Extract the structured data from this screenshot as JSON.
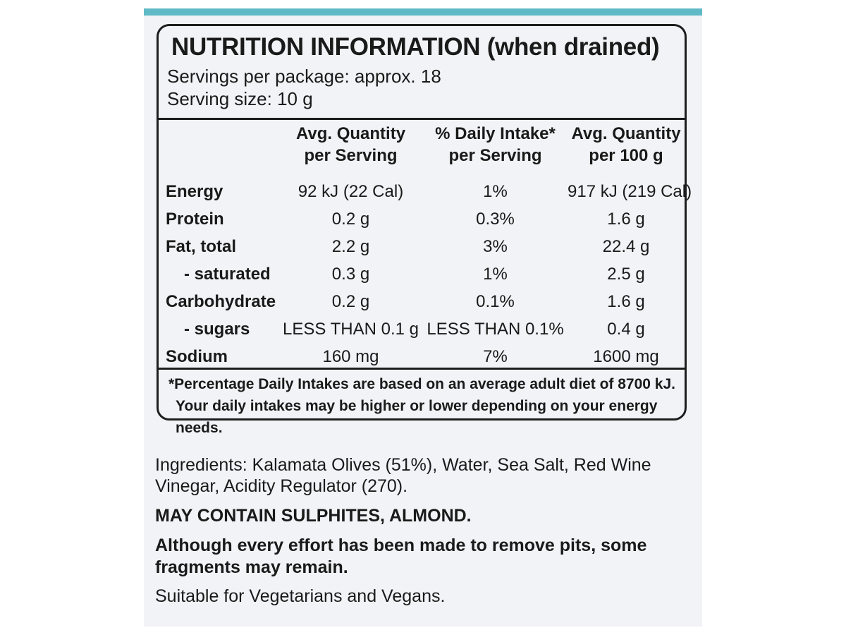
{
  "panel": {
    "title": "NUTRITION INFORMATION (when drained)",
    "servings_per_package": "Servings per package: approx. 18",
    "serving_size": "Serving size: 10 g"
  },
  "table": {
    "headers": [
      {
        "line1": "",
        "line2": ""
      },
      {
        "line1": "Avg. Quantity",
        "line2": "per Serving"
      },
      {
        "line1": "% Daily Intake*",
        "line2": "per Serving"
      },
      {
        "line1": "Avg. Quantity",
        "line2": "per 100 g"
      }
    ],
    "rows": [
      {
        "nutrient": "Energy",
        "per_serving": "92 kJ (22 Cal)",
        "daily_intake": "1%",
        "per_100g": "917 kJ (219 Cal)"
      },
      {
        "nutrient": "Protein",
        "per_serving": "0.2 g",
        "daily_intake": "0.3%",
        "per_100g": "1.6 g"
      },
      {
        "nutrient": "Fat, total",
        "per_serving": "2.2 g",
        "daily_intake": "3%",
        "per_100g": "22.4 g"
      },
      {
        "nutrient": "- saturated",
        "per_serving": "0.3 g",
        "daily_intake": "1%",
        "per_100g": "2.5 g"
      },
      {
        "nutrient": "Carbohydrate",
        "per_serving": "0.2 g",
        "daily_intake": "0.1%",
        "per_100g": "1.6 g"
      },
      {
        "nutrient": "- sugars",
        "per_serving": "LESS THAN 0.1 g",
        "daily_intake": "LESS THAN 0.1%",
        "per_100g": "0.4 g"
      },
      {
        "nutrient": "Sodium",
        "per_serving": "160 mg",
        "daily_intake": "7%",
        "per_100g": "1600 mg"
      }
    ]
  },
  "footnote": {
    "line1": "*Percentage Daily Intakes are based on an average adult diet of 8700 kJ.",
    "line2": "Your daily intakes may be higher or lower depending on your energy needs."
  },
  "ingredients": {
    "line1": "Ingredients: Kalamata Olives (51%), Water, Sea Salt, Red Wine",
    "line2": "Vinegar, Acidity Regulator (270)."
  },
  "allergen": "MAY CONTAIN SULPHITES, ALMOND.",
  "pits_warning": {
    "line1": "Although every effort has been made to remove pits, some",
    "line2": "fragments may remain."
  },
  "suitable": "Suitable for Vegetarians and Vegans.",
  "colors": {
    "accent_strip": "#5fb9c7",
    "label_background": "#f2f3f6",
    "ink": "#1a1a1a"
  }
}
